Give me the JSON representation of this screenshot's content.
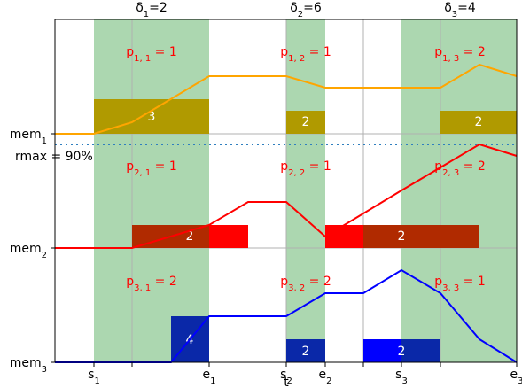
{
  "chart_data": {
    "type": "line",
    "title": "",
    "xlabel": "t",
    "ylabel": "",
    "x_ticks": [
      "s_1",
      "e_1",
      "s_2",
      "e_2",
      "s_3",
      "e_3"
    ],
    "y_ticks": [
      "mem_1",
      "mem_2",
      "mem_3"
    ],
    "deltas": [
      {
        "sym": "δ",
        "sub": "1",
        "val": "=2"
      },
      {
        "sym": "δ",
        "sub": "2",
        "val": "=6"
      },
      {
        "sym": "δ",
        "sub": "3",
        "val": "=4"
      }
    ],
    "rmax_label": "rmax = 90%",
    "p_labels": [
      {
        "sub": "1, 1",
        "val": " = 1"
      },
      {
        "sub": "1, 2",
        "val": " = 1"
      },
      {
        "sub": "1, 3",
        "val": " = 2"
      },
      {
        "sub": "2, 1",
        "val": " = 1"
      },
      {
        "sub": "2, 2",
        "val": " = 1"
      },
      {
        "sub": "2, 3",
        "val": " = 2"
      },
      {
        "sub": "3, 1",
        "val": " = 2"
      },
      {
        "sub": "3, 2",
        "val": " = 2"
      },
      {
        "sub": "3, 3",
        "val": " = 1"
      }
    ],
    "boxes": [
      {
        "label": "3",
        "color": "#b09a00"
      },
      {
        "label": "2",
        "color": "#b09a00"
      },
      {
        "label": "2",
        "color": "#b09a00"
      },
      {
        "label": "2",
        "color": "#b02a00"
      },
      {
        "label": "",
        "color": "#ff0000"
      },
      {
        "label": "",
        "color": "#ff0000"
      },
      {
        "label": "2",
        "color": "#b02a00"
      },
      {
        "label": "4",
        "color": "#0a28a8"
      },
      {
        "label": "2",
        "color": "#0a28a8"
      },
      {
        "label": "",
        "color": "#0000ff"
      },
      {
        "label": "2",
        "color": "#0a28a8"
      }
    ],
    "series": [
      {
        "color": "#ffa500"
      },
      {
        "color": "#ff0000"
      },
      {
        "color": "#0000ff"
      }
    ],
    "rmax_color": "#2f7fbf",
    "band_color": "#acd7b0"
  }
}
